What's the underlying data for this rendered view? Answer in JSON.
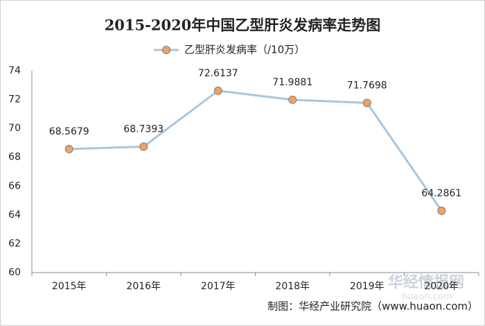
{
  "chart_data": {
    "type": "line",
    "title": "2015-2020年中国乙型肝炎发病率走势图",
    "categories": [
      "2015年",
      "2016年",
      "2017年",
      "2018年",
      "2019年",
      "2020年"
    ],
    "series": [
      {
        "name": "乙型肝炎发病率（/10万）",
        "color": "#a9c5df",
        "marker_color": "#f0a264",
        "values": [
          68.5679,
          68.7393,
          72.6137,
          71.9881,
          71.7698,
          64.2861
        ]
      }
    ],
    "ylim": [
      60,
      74
    ],
    "yticks": [
      60,
      62,
      64,
      66,
      68,
      70,
      72,
      74
    ],
    "grid": false,
    "legend": "top",
    "source": "制图：华经产业研究院（www.huaon.com）",
    "watermark": [
      "华经情报网",
      "huaon.com"
    ]
  }
}
